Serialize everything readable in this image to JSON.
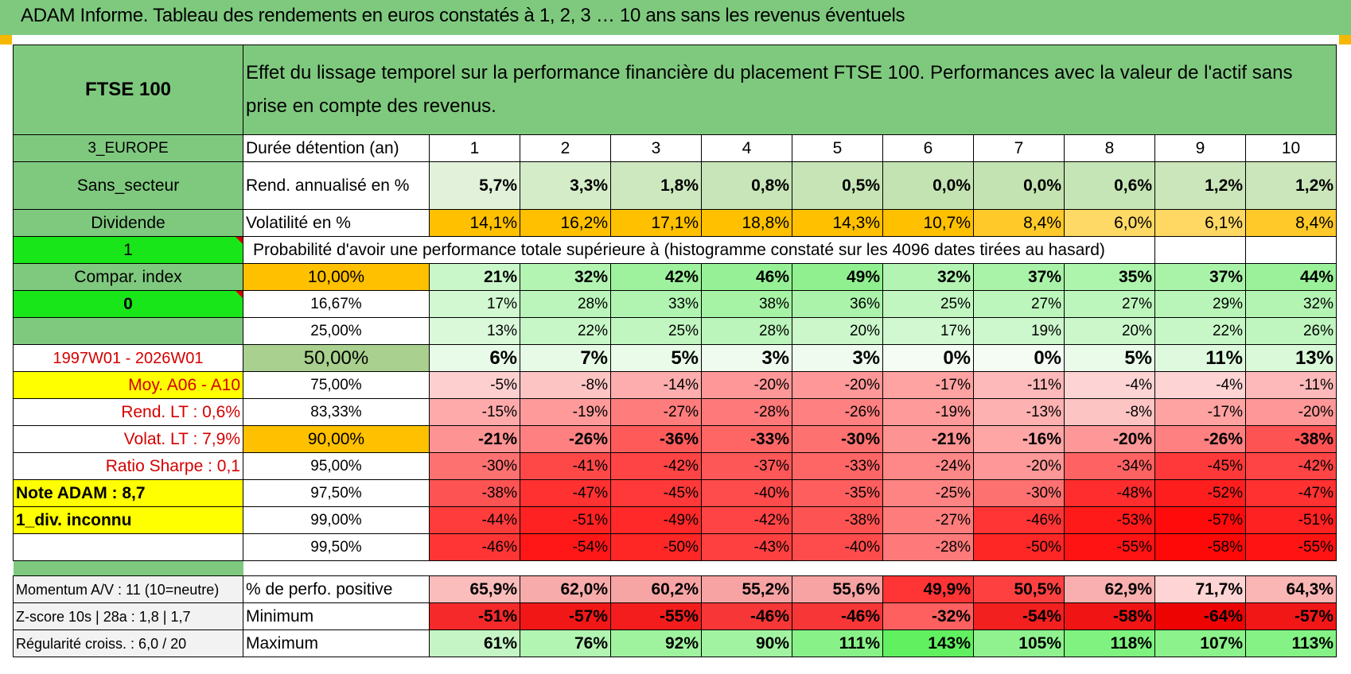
{
  "title": "ADAM Informe. Tableau des rendements en euros constatés à 1, 2, 3 … 10 ans sans les revenus éventuels",
  "index_name": "FTSE 100",
  "description": "Effet du lissage temporel sur la performance financière du placement FTSE 100. Performances avec la valeur de l'actif sans prise en compte des revenus.",
  "side": {
    "zone": "3_EUROPE",
    "secteur": "Sans_secteur",
    "dividende": "Dividende",
    "flag1": "1",
    "compar": "Compar. index",
    "flag0": "0",
    "blank": "",
    "period": "1997W01 - 2026W01",
    "moy": "Moy. A06 - A10",
    "rend_lt": "Rend. LT :    0,6%",
    "volat_lt": "Volat. LT :    7,9%",
    "sharpe": "Ratio Sharpe :     0,1",
    "note": "Note ADAM : 8,7",
    "div": "1_div. inconnu"
  },
  "header": {
    "label": "Durée détention (an)",
    "years": [
      "1",
      "2",
      "3",
      "4",
      "5",
      "6",
      "7",
      "8",
      "9",
      "10"
    ]
  },
  "rend": {
    "label": "Rend. annualisé en %",
    "values": [
      "5,7%",
      "3,3%",
      "1,8%",
      "0,8%",
      "0,5%",
      "0,0%",
      "0,0%",
      "0,6%",
      "1,2%",
      "1,2%"
    ]
  },
  "vol": {
    "label": "Volatilité en %",
    "values": [
      "14,1%",
      "16,2%",
      "17,1%",
      "18,8%",
      "14,3%",
      "10,7%",
      "8,4%",
      "6,0%",
      "6,1%",
      "8,4%"
    ]
  },
  "proba_title": "Probabilité d'avoir une performance totale supérieure à (histogramme constaté sur les 4096 dates tirées au hasard)",
  "proba_rows": [
    {
      "threshold": "10,00%",
      "values": [
        "21%",
        "32%",
        "42%",
        "46%",
        "49%",
        "32%",
        "37%",
        "35%",
        "37%",
        "44%"
      ]
    },
    {
      "threshold": "16,67%",
      "values": [
        "17%",
        "28%",
        "33%",
        "38%",
        "36%",
        "25%",
        "27%",
        "27%",
        "29%",
        "32%"
      ]
    },
    {
      "threshold": "25,00%",
      "values": [
        "13%",
        "22%",
        "25%",
        "28%",
        "20%",
        "17%",
        "19%",
        "20%",
        "22%",
        "26%"
      ]
    },
    {
      "threshold": "50,00%",
      "values": [
        "6%",
        "7%",
        "5%",
        "3%",
        "3%",
        "0%",
        "0%",
        "5%",
        "11%",
        "13%"
      ]
    },
    {
      "threshold": "75,00%",
      "values": [
        "-5%",
        "-8%",
        "-14%",
        "-20%",
        "-20%",
        "-17%",
        "-11%",
        "-4%",
        "-4%",
        "-11%"
      ]
    },
    {
      "threshold": "83,33%",
      "values": [
        "-15%",
        "-19%",
        "-27%",
        "-28%",
        "-26%",
        "-19%",
        "-13%",
        "-8%",
        "-17%",
        "-20%"
      ]
    },
    {
      "threshold": "90,00%",
      "values": [
        "-21%",
        "-26%",
        "-36%",
        "-33%",
        "-30%",
        "-21%",
        "-16%",
        "-20%",
        "-26%",
        "-38%"
      ]
    },
    {
      "threshold": "95,00%",
      "values": [
        "-30%",
        "-41%",
        "-42%",
        "-37%",
        "-33%",
        "-24%",
        "-20%",
        "-34%",
        "-45%",
        "-42%"
      ]
    },
    {
      "threshold": "97,50%",
      "values": [
        "-38%",
        "-47%",
        "-45%",
        "-40%",
        "-35%",
        "-25%",
        "-30%",
        "-48%",
        "-52%",
        "-47%"
      ]
    },
    {
      "threshold": "99,00%",
      "values": [
        "-44%",
        "-51%",
        "-49%",
        "-42%",
        "-38%",
        "-27%",
        "-46%",
        "-53%",
        "-57%",
        "-51%"
      ]
    },
    {
      "threshold": "99,50%",
      "values": [
        "-46%",
        "-54%",
        "-50%",
        "-43%",
        "-40%",
        "-28%",
        "-50%",
        "-55%",
        "-58%",
        "-55%"
      ]
    }
  ],
  "bottom": [
    {
      "side": "Momentum A/V : 11 (10=neutre)",
      "label": "% de perfo. positive",
      "values": [
        "65,9%",
        "62,0%",
        "60,2%",
        "55,2%",
        "55,6%",
        "49,9%",
        "50,5%",
        "62,9%",
        "71,7%",
        "64,3%"
      ]
    },
    {
      "side": "Z-score 10s | 28a : 1,8 | 1,7",
      "label": "Minimum",
      "values": [
        "-51%",
        "-57%",
        "-55%",
        "-46%",
        "-46%",
        "-32%",
        "-54%",
        "-58%",
        "-64%",
        "-57%"
      ]
    },
    {
      "side": "Régularité croiss. : 6,0 / 20",
      "label": "Maximum",
      "values": [
        "61%",
        "76%",
        "92%",
        "90%",
        "111%",
        "143%",
        "105%",
        "118%",
        "107%",
        "113%"
      ]
    }
  ],
  "colors": {
    "header_green": "#7fc97f",
    "bright_green": "#19e619",
    "yellow": "#ffff00",
    "orange": "#ffc000",
    "red_text": "#d40000"
  }
}
